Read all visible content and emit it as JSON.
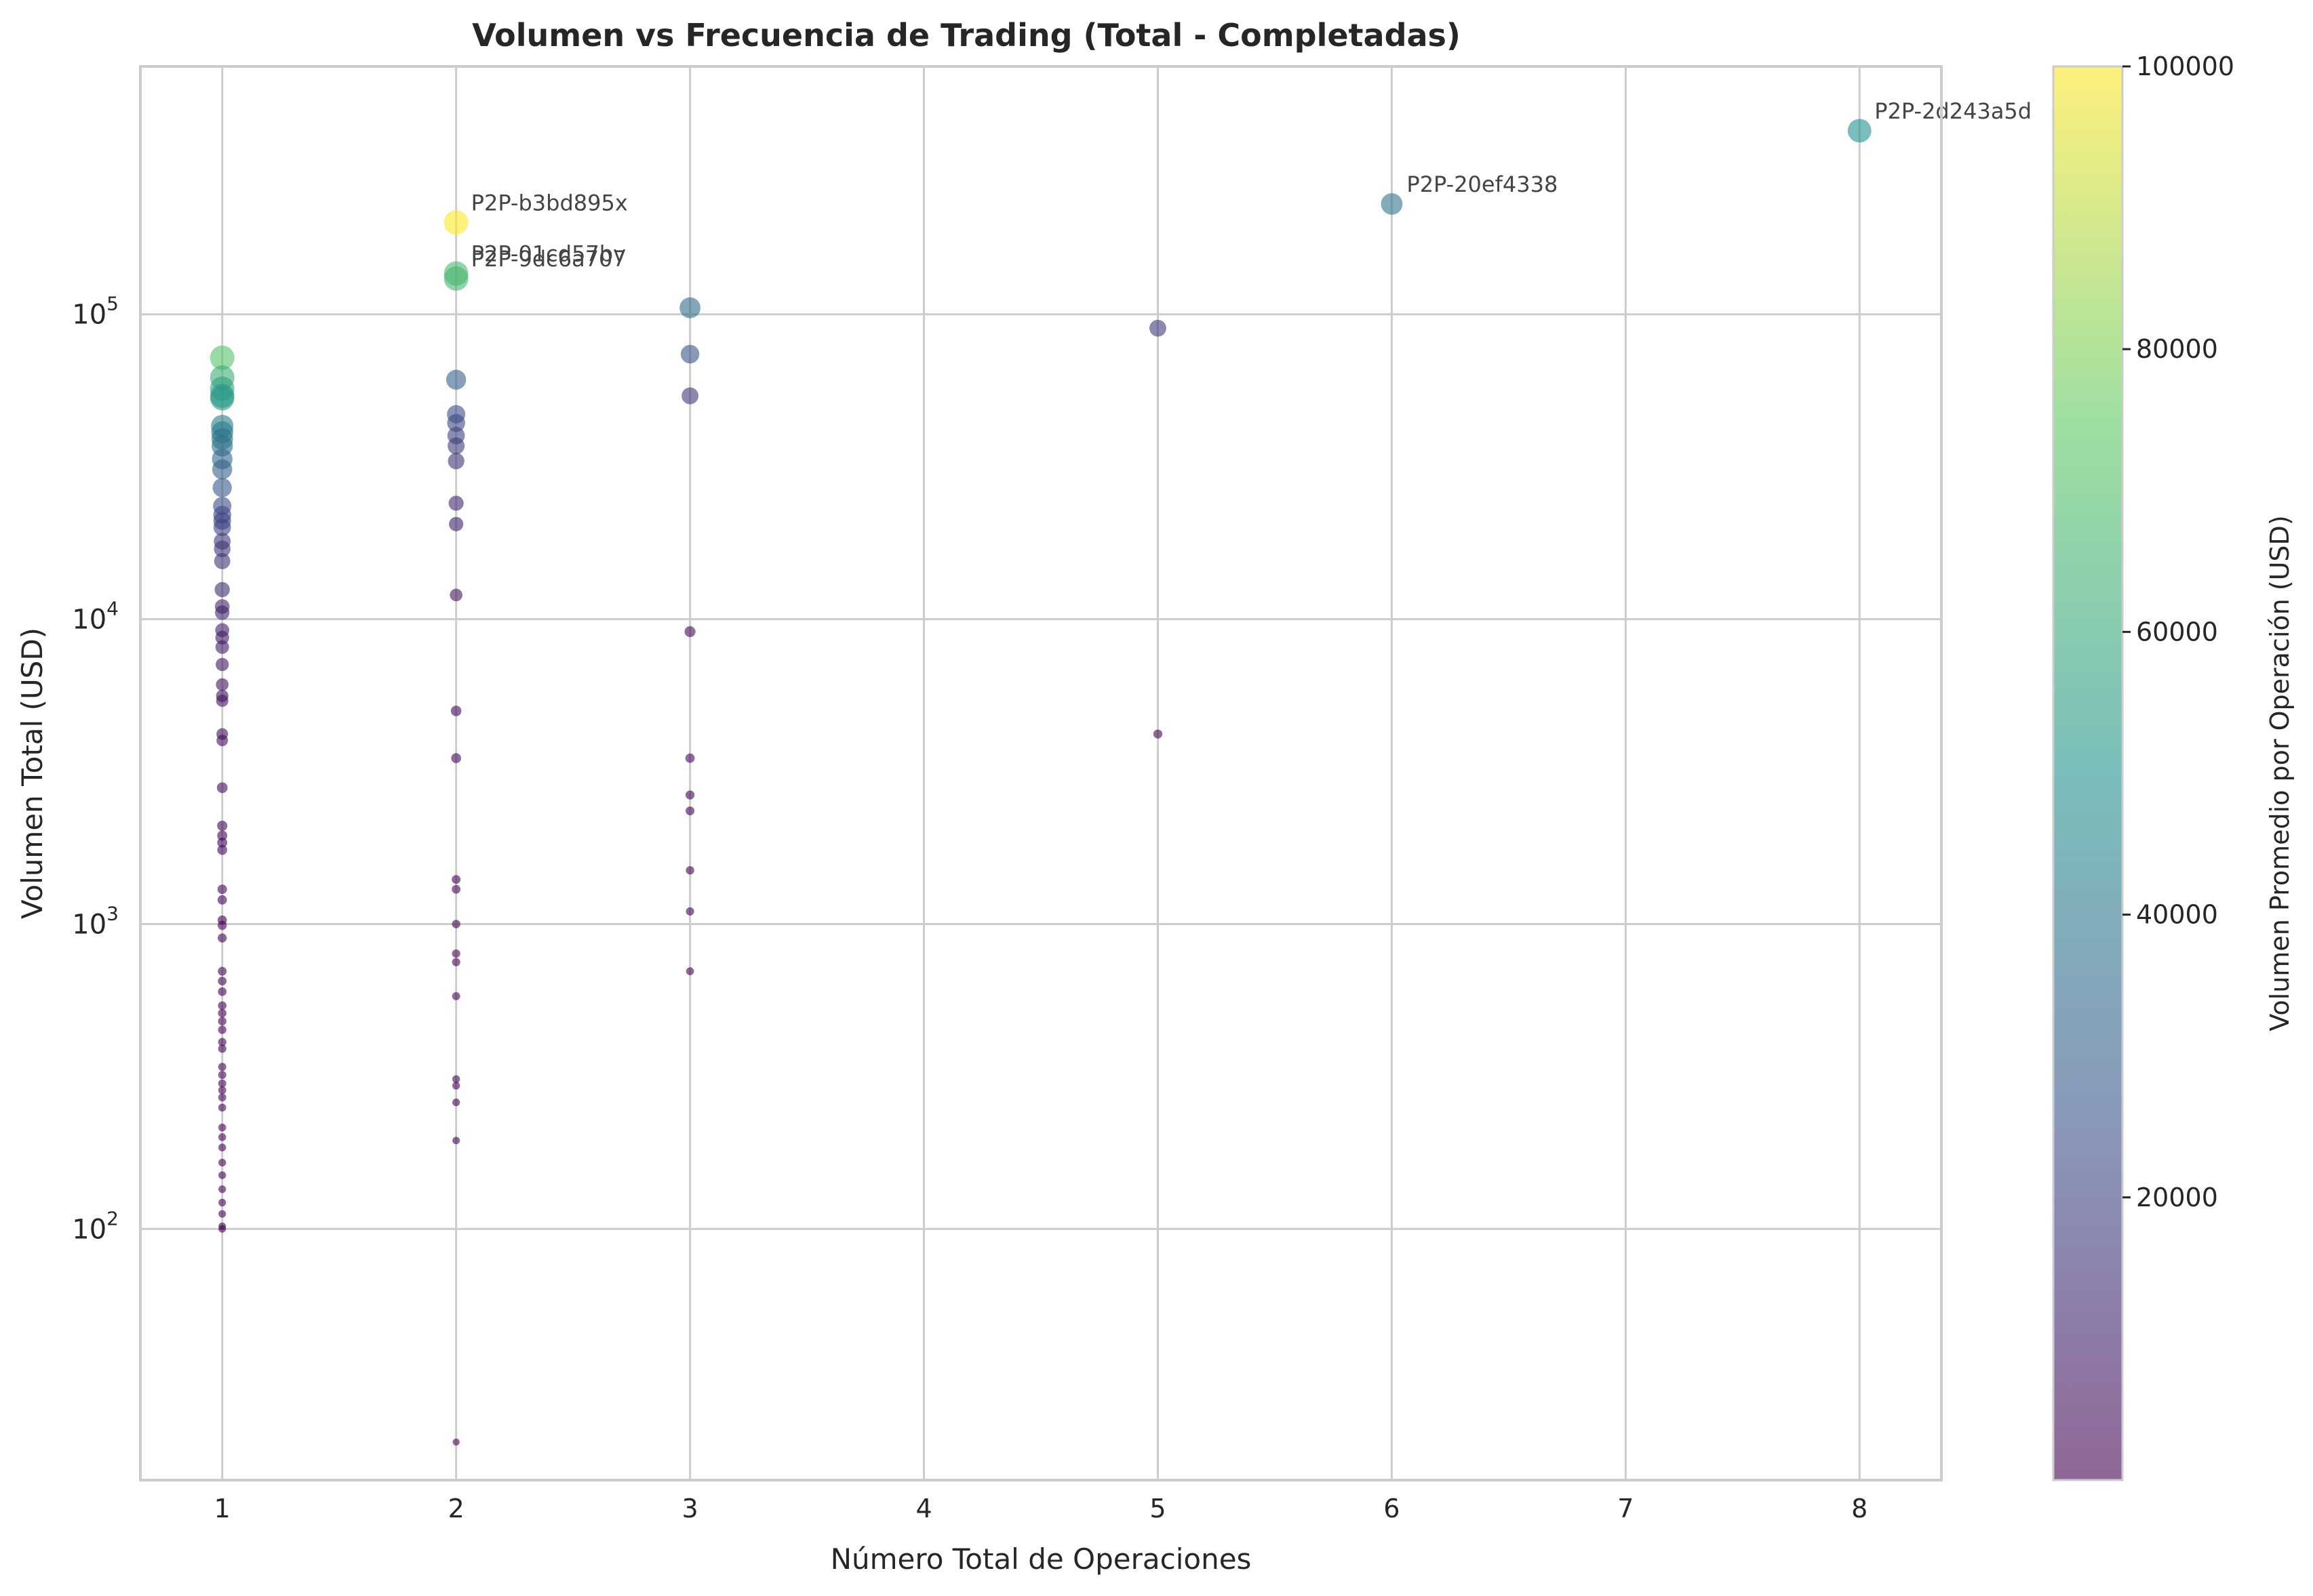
{
  "chart_data": {
    "type": "scatter",
    "title": "Volumen vs Frecuencia de Trading (Total - Completadas)",
    "xlabel": "Número Total de Operaciones",
    "ylabel": "Volumen Total (USD)",
    "colorbar_label": "Volumen Promedio por Operación (USD)",
    "xlim": [
      0.65,
      8.35
    ],
    "ylim": [
      15,
      650000
    ],
    "yscale": "log",
    "grid": true,
    "colormap": "viridis",
    "color_range": [
      0,
      100000
    ],
    "xticks": [
      "1",
      "2",
      "3",
      "4",
      "5",
      "6",
      "7",
      "8"
    ],
    "yticks": [
      {
        "value": 100,
        "base": "10",
        "exp": "2"
      },
      {
        "value": 1000,
        "base": "10",
        "exp": "3"
      },
      {
        "value": 10000,
        "base": "10",
        "exp": "4"
      },
      {
        "value": 100000,
        "base": "10",
        "exp": "5"
      }
    ],
    "colorbar_ticks": [
      "20000",
      "40000",
      "60000",
      "80000",
      "100000"
    ],
    "points": [
      {
        "x": 1,
        "y": 72000
      },
      {
        "x": 1,
        "y": 62000
      },
      {
        "x": 1,
        "y": 57000
      },
      {
        "x": 1,
        "y": 54000
      },
      {
        "x": 1,
        "y": 53000
      },
      {
        "x": 1,
        "y": 43000
      },
      {
        "x": 1,
        "y": 41000
      },
      {
        "x": 1,
        "y": 39000
      },
      {
        "x": 1,
        "y": 37000
      },
      {
        "x": 1,
        "y": 33500
      },
      {
        "x": 1,
        "y": 31000
      },
      {
        "x": 1,
        "y": 27000
      },
      {
        "x": 1,
        "y": 23500
      },
      {
        "x": 1,
        "y": 22000
      },
      {
        "x": 1,
        "y": 21000
      },
      {
        "x": 1,
        "y": 20000
      },
      {
        "x": 1,
        "y": 18000
      },
      {
        "x": 1,
        "y": 17000
      },
      {
        "x": 1,
        "y": 15500
      },
      {
        "x": 1,
        "y": 12500
      },
      {
        "x": 1,
        "y": 11000
      },
      {
        "x": 1,
        "y": 10500
      },
      {
        "x": 1,
        "y": 9200
      },
      {
        "x": 1,
        "y": 8700
      },
      {
        "x": 1,
        "y": 8100
      },
      {
        "x": 1,
        "y": 7100
      },
      {
        "x": 1,
        "y": 6100
      },
      {
        "x": 1,
        "y": 5600
      },
      {
        "x": 1,
        "y": 5400
      },
      {
        "x": 1,
        "y": 4200
      },
      {
        "x": 1,
        "y": 4000
      },
      {
        "x": 1,
        "y": 2800
      },
      {
        "x": 1,
        "y": 2100
      },
      {
        "x": 1,
        "y": 1950
      },
      {
        "x": 1,
        "y": 1850
      },
      {
        "x": 1,
        "y": 1750
      },
      {
        "x": 1,
        "y": 1300
      },
      {
        "x": 1,
        "y": 1200
      },
      {
        "x": 1,
        "y": 1030
      },
      {
        "x": 1,
        "y": 990
      },
      {
        "x": 1,
        "y": 900
      },
      {
        "x": 1,
        "y": 700
      },
      {
        "x": 1,
        "y": 650
      },
      {
        "x": 1,
        "y": 600
      },
      {
        "x": 1,
        "y": 540
      },
      {
        "x": 1,
        "y": 510
      },
      {
        "x": 1,
        "y": 480
      },
      {
        "x": 1,
        "y": 450
      },
      {
        "x": 1,
        "y": 410
      },
      {
        "x": 1,
        "y": 390
      },
      {
        "x": 1,
        "y": 340
      },
      {
        "x": 1,
        "y": 320
      },
      {
        "x": 1,
        "y": 300
      },
      {
        "x": 1,
        "y": 285
      },
      {
        "x": 1,
        "y": 270
      },
      {
        "x": 1,
        "y": 250
      },
      {
        "x": 1,
        "y": 215
      },
      {
        "x": 1,
        "y": 200
      },
      {
        "x": 1,
        "y": 185
      },
      {
        "x": 1,
        "y": 165
      },
      {
        "x": 1,
        "y": 150
      },
      {
        "x": 1,
        "y": 135
      },
      {
        "x": 1,
        "y": 122
      },
      {
        "x": 1,
        "y": 112
      },
      {
        "x": 1,
        "y": 102
      },
      {
        "x": 1,
        "y": 100
      },
      {
        "x": 2,
        "y": 200000
      },
      {
        "x": 2,
        "y": 136000
      },
      {
        "x": 2,
        "y": 131000
      },
      {
        "x": 2,
        "y": 61000
      },
      {
        "x": 2,
        "y": 47000
      },
      {
        "x": 2,
        "y": 44000
      },
      {
        "x": 2,
        "y": 40000
      },
      {
        "x": 2,
        "y": 37000
      },
      {
        "x": 2,
        "y": 33000
      },
      {
        "x": 2,
        "y": 24000
      },
      {
        "x": 2,
        "y": 20500
      },
      {
        "x": 2,
        "y": 12000
      },
      {
        "x": 2,
        "y": 5000
      },
      {
        "x": 2,
        "y": 3500
      },
      {
        "x": 2,
        "y": 1400
      },
      {
        "x": 2,
        "y": 1300
      },
      {
        "x": 2,
        "y": 1000
      },
      {
        "x": 2,
        "y": 800
      },
      {
        "x": 2,
        "y": 750
      },
      {
        "x": 2,
        "y": 580
      },
      {
        "x": 2,
        "y": 310
      },
      {
        "x": 2,
        "y": 295
      },
      {
        "x": 2,
        "y": 260
      },
      {
        "x": 2,
        "y": 195
      },
      {
        "x": 2,
        "y": 20
      },
      {
        "x": 3,
        "y": 105000
      },
      {
        "x": 3,
        "y": 74000
      },
      {
        "x": 3,
        "y": 54000
      },
      {
        "x": 3,
        "y": 9100
      },
      {
        "x": 3,
        "y": 3500
      },
      {
        "x": 3,
        "y": 2650
      },
      {
        "x": 3,
        "y": 2350
      },
      {
        "x": 3,
        "y": 1500
      },
      {
        "x": 3,
        "y": 1100
      },
      {
        "x": 3,
        "y": 700
      },
      {
        "x": 5,
        "y": 90000
      },
      {
        "x": 5,
        "y": 4200
      },
      {
        "x": 6,
        "y": 230000
      },
      {
        "x": 8,
        "y": 400000
      }
    ],
    "annotations": [
      {
        "label": "P2P-b3bd895x",
        "x": 2,
        "y": 200000
      },
      {
        "label": "P2P-01cd57bv",
        "x": 2,
        "y": 136000
      },
      {
        "label": "P2P-9dc6a707",
        "x": 2,
        "y": 131000
      },
      {
        "label": "P2P-20ef4338",
        "x": 6,
        "y": 230000
      },
      {
        "label": "P2P-2d243a5d",
        "x": 8,
        "y": 400000
      }
    ]
  }
}
